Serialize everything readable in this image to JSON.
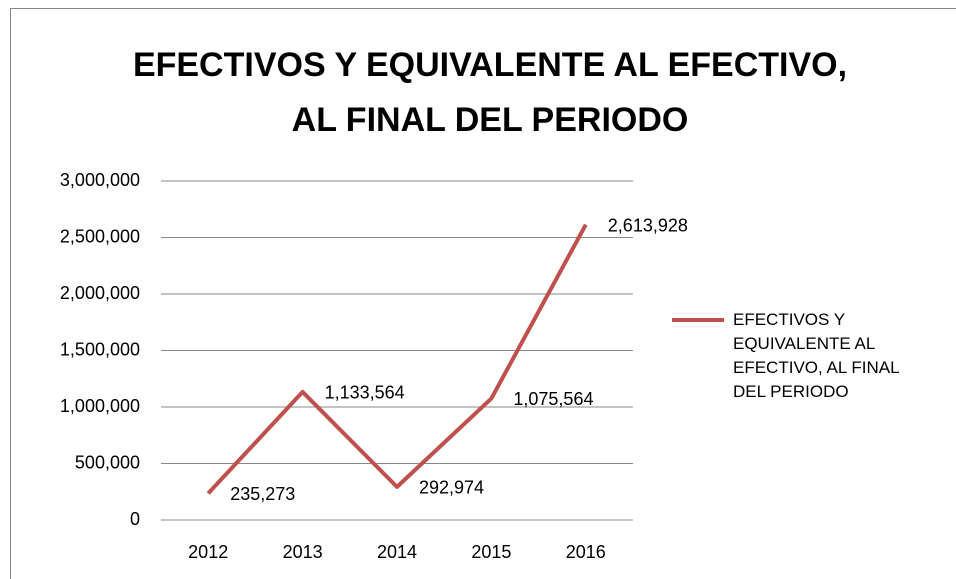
{
  "chart_data": {
    "type": "line",
    "title": "EFECTIVOS Y EQUIVALENTE AL EFECTIVO, AL FINAL DEL PERIODO",
    "categories": [
      "2012",
      "2013",
      "2014",
      "2015",
      "2016"
    ],
    "series": [
      {
        "name": "EFECTIVOS Y EQUIVALENTE AL EFECTIVO, AL FINAL DEL PERIODO",
        "color": "#c0504d",
        "values": [
          235273,
          1133564,
          292974,
          1075564,
          2613928
        ],
        "value_labels": [
          "235,273",
          "1,133,564",
          "292,974",
          "1,075,564",
          "2,613,928"
        ]
      }
    ],
    "ylim": [
      0,
      3000000
    ],
    "yticks": [
      0,
      {
        "value": 500000,
        "label": "500,000"
      },
      {
        "value": 1000000,
        "label": "1,000,000"
      },
      {
        "value": 1500000,
        "label": "1,500,000"
      },
      {
        "value": 2000000,
        "label": "2,000,000"
      },
      {
        "value": 2500000,
        "label": "2,500,000"
      },
      {
        "value": 3000000,
        "label": "3,000,000"
      }
    ],
    "grid": true,
    "legend": "right"
  }
}
